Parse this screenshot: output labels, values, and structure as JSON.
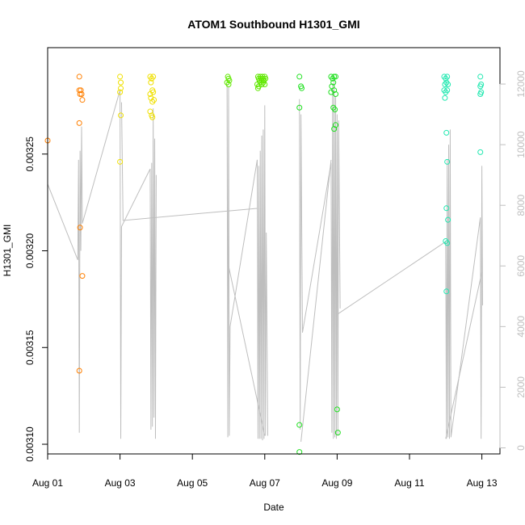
{
  "chart_data": {
    "type": "scatter",
    "title": "ATOM1 Southbound H1301_GMI",
    "xlabel": "Date",
    "ylabel": "H1301_GMI",
    "x_ticks": [
      "Aug 01",
      "Aug 03",
      "Aug 05",
      "Aug 07",
      "Aug 09",
      "Aug 11",
      "Aug 13"
    ],
    "xlim": [
      "2016-08-01T00:00",
      "2016-08-13T12:00"
    ],
    "ylim": [
      0.003095,
      0.003305
    ],
    "y_ticks": [
      0.0031,
      0.00315,
      0.0032,
      0.00325
    ],
    "y_tick_labels": [
      "0.00310",
      "0.00315",
      "0.00320",
      "0.00325"
    ],
    "y2lim": [
      -200,
      13200
    ],
    "y2_ticks": [
      0,
      2000,
      4000,
      6000,
      8000,
      10000,
      12000
    ],
    "y2_tick_labels": [
      "0",
      "2000",
      "4000",
      "6000",
      "8000",
      "10000",
      "12000"
    ],
    "grid": false,
    "line_color": "#bebebe",
    "line_series": [
      [
        [
          "2016-08-01T00:00",
          8700
        ],
        [
          "2016-08-01T20:00",
          6200
        ],
        [
          "2016-08-01T20:30",
          9500
        ],
        [
          "2016-08-01T21:00",
          500
        ],
        [
          "2016-08-01T21:30",
          9800
        ],
        [
          "2016-08-01T22:00",
          6500
        ],
        [
          "2016-08-01T22:30",
          10600
        ],
        [
          "2016-08-01T23:00",
          7400
        ],
        [
          "2016-08-03T00:00",
          11800
        ],
        [
          "2016-08-03T00:30",
          300
        ],
        [
          "2016-08-03T01:00",
          7300
        ],
        [
          "2016-08-03T20:00",
          9200
        ],
        [
          "2016-08-03T20:30",
          600
        ],
        [
          "2016-08-03T21:00",
          9400
        ],
        [
          "2016-08-03T21:30",
          700
        ],
        [
          "2016-08-03T22:00",
          11200
        ],
        [
          "2016-08-03T22:30",
          1000
        ],
        [
          "2016-08-03T23:00",
          10200
        ],
        [
          "2016-08-03T23:30",
          300
        ],
        [
          "2016-08-04T00:00",
          9000
        ]
      ],
      [
        [
          "2016-08-03T01:00",
          11400
        ],
        [
          "2016-08-03T02:00",
          7500
        ],
        [
          "2016-08-06T19:00",
          7900
        ]
      ],
      [
        [
          "2016-08-05T23:00",
          12000
        ],
        [
          "2016-08-05T23:30",
          350
        ],
        [
          "2016-08-06T00:00",
          11900
        ],
        [
          "2016-08-06T00:30",
          400
        ],
        [
          "2016-08-06T01:00",
          4000
        ],
        [
          "2016-08-06T19:00",
          9500
        ],
        [
          "2016-08-06T19:30",
          300
        ],
        [
          "2016-08-06T20:00",
          9300
        ],
        [
          "2016-08-06T20:30",
          300
        ],
        [
          "2016-08-06T21:00",
          9800
        ],
        [
          "2016-08-06T21:30",
          300
        ],
        [
          "2016-08-06T22:00",
          10300
        ],
        [
          "2016-08-06T22:30",
          250
        ],
        [
          "2016-08-06T23:00",
          10500
        ],
        [
          "2016-08-06T23:30",
          300
        ],
        [
          "2016-08-07T00:00",
          11300
        ],
        [
          "2016-08-07T00:30",
          400
        ],
        [
          "2016-08-07T01:00",
          7100
        ],
        [
          "2016-08-07T02:00",
          400
        ]
      ],
      [
        [
          "2016-08-06T00:00",
          6000
        ],
        [
          "2016-08-07T00:00",
          400
        ]
      ],
      [
        [
          "2016-08-07T23:00",
          11500
        ],
        [
          "2016-08-07T23:30",
          600
        ],
        [
          "2016-08-08T00:00",
          11000
        ],
        [
          "2016-08-08T01:00",
          3800
        ],
        [
          "2016-08-08T20:00",
          9400
        ],
        [
          "2016-08-08T20:30",
          500
        ],
        [
          "2016-08-08T21:00",
          12000
        ],
        [
          "2016-08-08T21:30",
          300
        ],
        [
          "2016-08-08T22:00",
          12200
        ],
        [
          "2016-08-08T22:30",
          350
        ],
        [
          "2016-08-08T23:00",
          11600
        ],
        [
          "2016-08-08T23:30",
          300
        ],
        [
          "2016-08-09T00:00",
          11000
        ],
        [
          "2016-08-09T00:30",
          400
        ],
        [
          "2016-08-09T01:00",
          10800
        ],
        [
          "2016-08-09T02:00",
          4600
        ]
      ],
      [
        [
          "2016-08-08T00:00",
          200
        ],
        [
          "2016-08-08T20:00",
          9500
        ]
      ],
      [
        [
          "2016-08-09T00:00",
          4400
        ],
        [
          "2016-08-12T00:00",
          6800
        ],
        [
          "2016-08-12T00:30",
          300
        ],
        [
          "2016-08-12T01:00",
          9500
        ],
        [
          "2016-08-12T01:30",
          350
        ],
        [
          "2016-08-12T02:00",
          10000
        ],
        [
          "2016-08-12T02:30",
          300
        ],
        [
          "2016-08-12T03:00",
          10500
        ],
        [
          "2016-08-12T03:30",
          350
        ],
        [
          "2016-08-12T23:00",
          7600
        ],
        [
          "2016-08-12T23:30",
          300
        ],
        [
          "2016-08-13T00:00",
          9300
        ],
        [
          "2016-08-13T00:30",
          4700
        ]
      ],
      [
        [
          "2016-08-12T00:00",
          300
        ],
        [
          "2016-08-13T00:00",
          5800
        ]
      ]
    ],
    "point_groups": [
      {
        "color": "#ff7f00",
        "points": [
          [
            "2016-08-01T00:00",
            0.003257
          ],
          [
            "2016-08-01T21:00",
            0.00329
          ],
          [
            "2016-08-01T21:00",
            0.003283
          ],
          [
            "2016-08-01T21:30",
            0.003281
          ],
          [
            "2016-08-01T22:00",
            0.003283
          ],
          [
            "2016-08-01T22:30",
            0.003281
          ],
          [
            "2016-08-01T23:00",
            0.003278
          ],
          [
            "2016-08-01T21:00",
            0.003266
          ],
          [
            "2016-08-01T21:30",
            0.003212
          ],
          [
            "2016-08-01T23:00",
            0.003187
          ],
          [
            "2016-08-01T21:00",
            0.003138
          ]
        ]
      },
      {
        "color": "#f0e000",
        "points": [
          [
            "2016-08-03T00:00",
            0.00329
          ],
          [
            "2016-08-03T00:30",
            0.003287
          ],
          [
            "2016-08-03T00:30",
            0.003284
          ],
          [
            "2016-08-03T00:00",
            0.003282
          ],
          [
            "2016-08-03T00:30",
            0.00327
          ],
          [
            "2016-08-03T00:00",
            0.003246
          ],
          [
            "2016-08-03T20:00",
            0.00329
          ],
          [
            "2016-08-03T21:00",
            0.003289
          ],
          [
            "2016-08-03T22:00",
            0.00329
          ],
          [
            "2016-08-03T20:30",
            0.003287
          ],
          [
            "2016-08-03T21:30",
            0.003283
          ],
          [
            "2016-08-03T20:00",
            0.003281
          ],
          [
            "2016-08-03T22:00",
            0.003282
          ],
          [
            "2016-08-03T20:30",
            0.003279
          ],
          [
            "2016-08-03T21:30",
            0.003277
          ],
          [
            "2016-08-03T22:30",
            0.003278
          ],
          [
            "2016-08-03T20:00",
            0.003272
          ],
          [
            "2016-08-03T21:00",
            0.00327
          ],
          [
            "2016-08-03T21:30",
            0.003269
          ]
        ]
      },
      {
        "color": "#60e800",
        "points": [
          [
            "2016-08-05T23:30",
            0.00329
          ],
          [
            "2016-08-06T00:00",
            0.003289
          ],
          [
            "2016-08-06T00:30",
            0.003288
          ],
          [
            "2016-08-05T23:00",
            0.003287
          ],
          [
            "2016-08-06T00:00",
            0.003286
          ],
          [
            "2016-08-06T19:30",
            0.00329
          ],
          [
            "2016-08-06T20:00",
            0.003289
          ],
          [
            "2016-08-06T20:30",
            0.003288
          ],
          [
            "2016-08-06T21:00",
            0.00329
          ],
          [
            "2016-08-06T21:30",
            0.003289
          ],
          [
            "2016-08-06T22:00",
            0.003288
          ],
          [
            "2016-08-06T22:30",
            0.00329
          ],
          [
            "2016-08-06T23:00",
            0.003289
          ],
          [
            "2016-08-06T23:30",
            0.003288
          ],
          [
            "2016-08-07T00:00",
            0.00329
          ],
          [
            "2016-08-07T00:30",
            0.003289
          ],
          [
            "2016-08-06T19:00",
            0.003286
          ],
          [
            "2016-08-06T20:00",
            0.003285
          ],
          [
            "2016-08-06T21:00",
            0.003287
          ],
          [
            "2016-08-06T22:00",
            0.003286
          ],
          [
            "2016-08-06T23:00",
            0.003287
          ],
          [
            "2016-08-07T00:00",
            0.003286
          ],
          [
            "2016-08-06T19:30",
            0.003284
          ]
        ]
      },
      {
        "color": "#20e020",
        "points": [
          [
            "2016-08-07T23:00",
            0.00329
          ],
          [
            "2016-08-08T00:00",
            0.003285
          ],
          [
            "2016-08-08T00:30",
            0.003284
          ],
          [
            "2016-08-07T23:00",
            0.003274
          ],
          [
            "2016-08-07T23:00",
            0.00311
          ],
          [
            "2016-08-07T23:00",
            0.003096
          ],
          [
            "2016-08-08T20:00",
            0.00329
          ],
          [
            "2016-08-08T21:00",
            0.003289
          ],
          [
            "2016-08-08T22:00",
            0.00329
          ],
          [
            "2016-08-08T23:00",
            0.00329
          ],
          [
            "2016-08-08T21:30",
            0.003287
          ],
          [
            "2016-08-08T20:30",
            0.003285
          ],
          [
            "2016-08-08T22:00",
            0.003283
          ],
          [
            "2016-08-08T20:00",
            0.003282
          ],
          [
            "2016-08-08T23:00",
            0.003281
          ],
          [
            "2016-08-08T22:30",
            0.003273
          ],
          [
            "2016-08-08T21:30",
            0.003274
          ],
          [
            "2016-08-08T23:00",
            0.003265
          ],
          [
            "2016-08-08T22:00",
            0.003263
          ],
          [
            "2016-08-09T00:00",
            0.003118
          ],
          [
            "2016-08-09T00:30",
            0.003106
          ]
        ]
      },
      {
        "color": "#20e8b0",
        "points": [
          [
            "2016-08-11T23:00",
            0.00329
          ],
          [
            "2016-08-12T00:00",
            0.003289
          ],
          [
            "2016-08-12T01:00",
            0.00329
          ],
          [
            "2016-08-11T23:30",
            0.003286
          ],
          [
            "2016-08-12T00:30",
            0.003287
          ],
          [
            "2016-08-12T01:30",
            0.003286
          ],
          [
            "2016-08-11T23:00",
            0.003283
          ],
          [
            "2016-08-12T00:00",
            0.003282
          ],
          [
            "2016-08-12T01:00",
            0.003283
          ],
          [
            "2016-08-11T23:30",
            0.003279
          ],
          [
            "2016-08-12T00:30",
            0.003261
          ],
          [
            "2016-08-12T01:00",
            0.003246
          ],
          [
            "2016-08-12T00:30",
            0.003222
          ],
          [
            "2016-08-12T01:30",
            0.003216
          ],
          [
            "2016-08-12T00:00",
            0.003205
          ],
          [
            "2016-08-12T01:00",
            0.003204
          ],
          [
            "2016-08-12T00:30",
            0.003179
          ],
          [
            "2016-08-12T23:00",
            0.00329
          ],
          [
            "2016-08-12T23:30",
            0.003286
          ],
          [
            "2016-08-12T23:00",
            0.003285
          ],
          [
            "2016-08-12T23:30",
            0.003282
          ],
          [
            "2016-08-12T23:00",
            0.003281
          ],
          [
            "2016-08-12T23:00",
            0.003251
          ]
        ]
      }
    ]
  }
}
